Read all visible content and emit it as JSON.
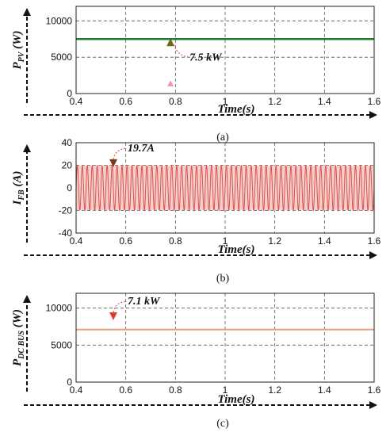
{
  "colors": {
    "ppv": "#1e7a2e",
    "ifb": "#d9534f",
    "ifb_band": "#f6cfcb",
    "pdc": "#e8a07a",
    "arrow_red": "#e53935",
    "arrow_olive": "#6b6b1f",
    "marker_pink": "#f48fb1"
  },
  "chart_data": [
    {
      "type": "line",
      "panel_label": "(a)",
      "ylabel_main": "P",
      "ylabel_sub": "PV",
      "ylabel_unit": " (W)",
      "xlabel": "Time(s)",
      "xlim": [
        0.4,
        1.6
      ],
      "ylim": [
        0,
        12000
      ],
      "xticks": [
        "0.4",
        "0.6",
        "0.8",
        "1",
        "1.2",
        "1.4",
        "1.6"
      ],
      "yticks": [
        "0",
        "5000",
        "10000"
      ],
      "series": [
        {
          "x": [
            0.4,
            1.6
          ],
          "y": [
            7500,
            7500
          ]
        }
      ],
      "annotation": "7.5 kW",
      "annotation_at": [
        0.78,
        7500
      ]
    },
    {
      "type": "line",
      "panel_label": "(b)",
      "ylabel_main": "I",
      "ylabel_sub": "FB",
      "ylabel_unit": " (A)",
      "xlabel": "Time(s)",
      "xlim": [
        0.4,
        1.6
      ],
      "ylim": [
        -40,
        40
      ],
      "xticks": [
        "0.4",
        "0.6",
        "0.8",
        "1",
        "1.2",
        "1.4",
        "1.6"
      ],
      "yticks": [
        "-40",
        "-20",
        "0",
        "20",
        "40"
      ],
      "series": [
        {
          "amplitude": 19.7,
          "frequency_hz": 50,
          "x_range": [
            0.4,
            1.6
          ]
        }
      ],
      "annotation": "19.7A",
      "annotation_at": [
        0.55,
        19.7
      ]
    },
    {
      "type": "line",
      "panel_label": "(c)",
      "ylabel_main": "P",
      "ylabel_sub": "DC BUS",
      "ylabel_unit": " (W)",
      "xlabel": "Time(s)",
      "xlim": [
        0.4,
        1.6
      ],
      "ylim": [
        0,
        12000
      ],
      "xticks": [
        "0.4",
        "0.6",
        "0.8",
        "1",
        "1.2",
        "1.4",
        "1.6"
      ],
      "yticks": [
        "0",
        "5000",
        "10000"
      ],
      "series": [
        {
          "x": [
            0.4,
            1.6
          ],
          "y": [
            7100,
            7100
          ]
        }
      ],
      "annotation": "7.1 kW",
      "annotation_at": [
        0.55,
        9000
      ]
    }
  ]
}
